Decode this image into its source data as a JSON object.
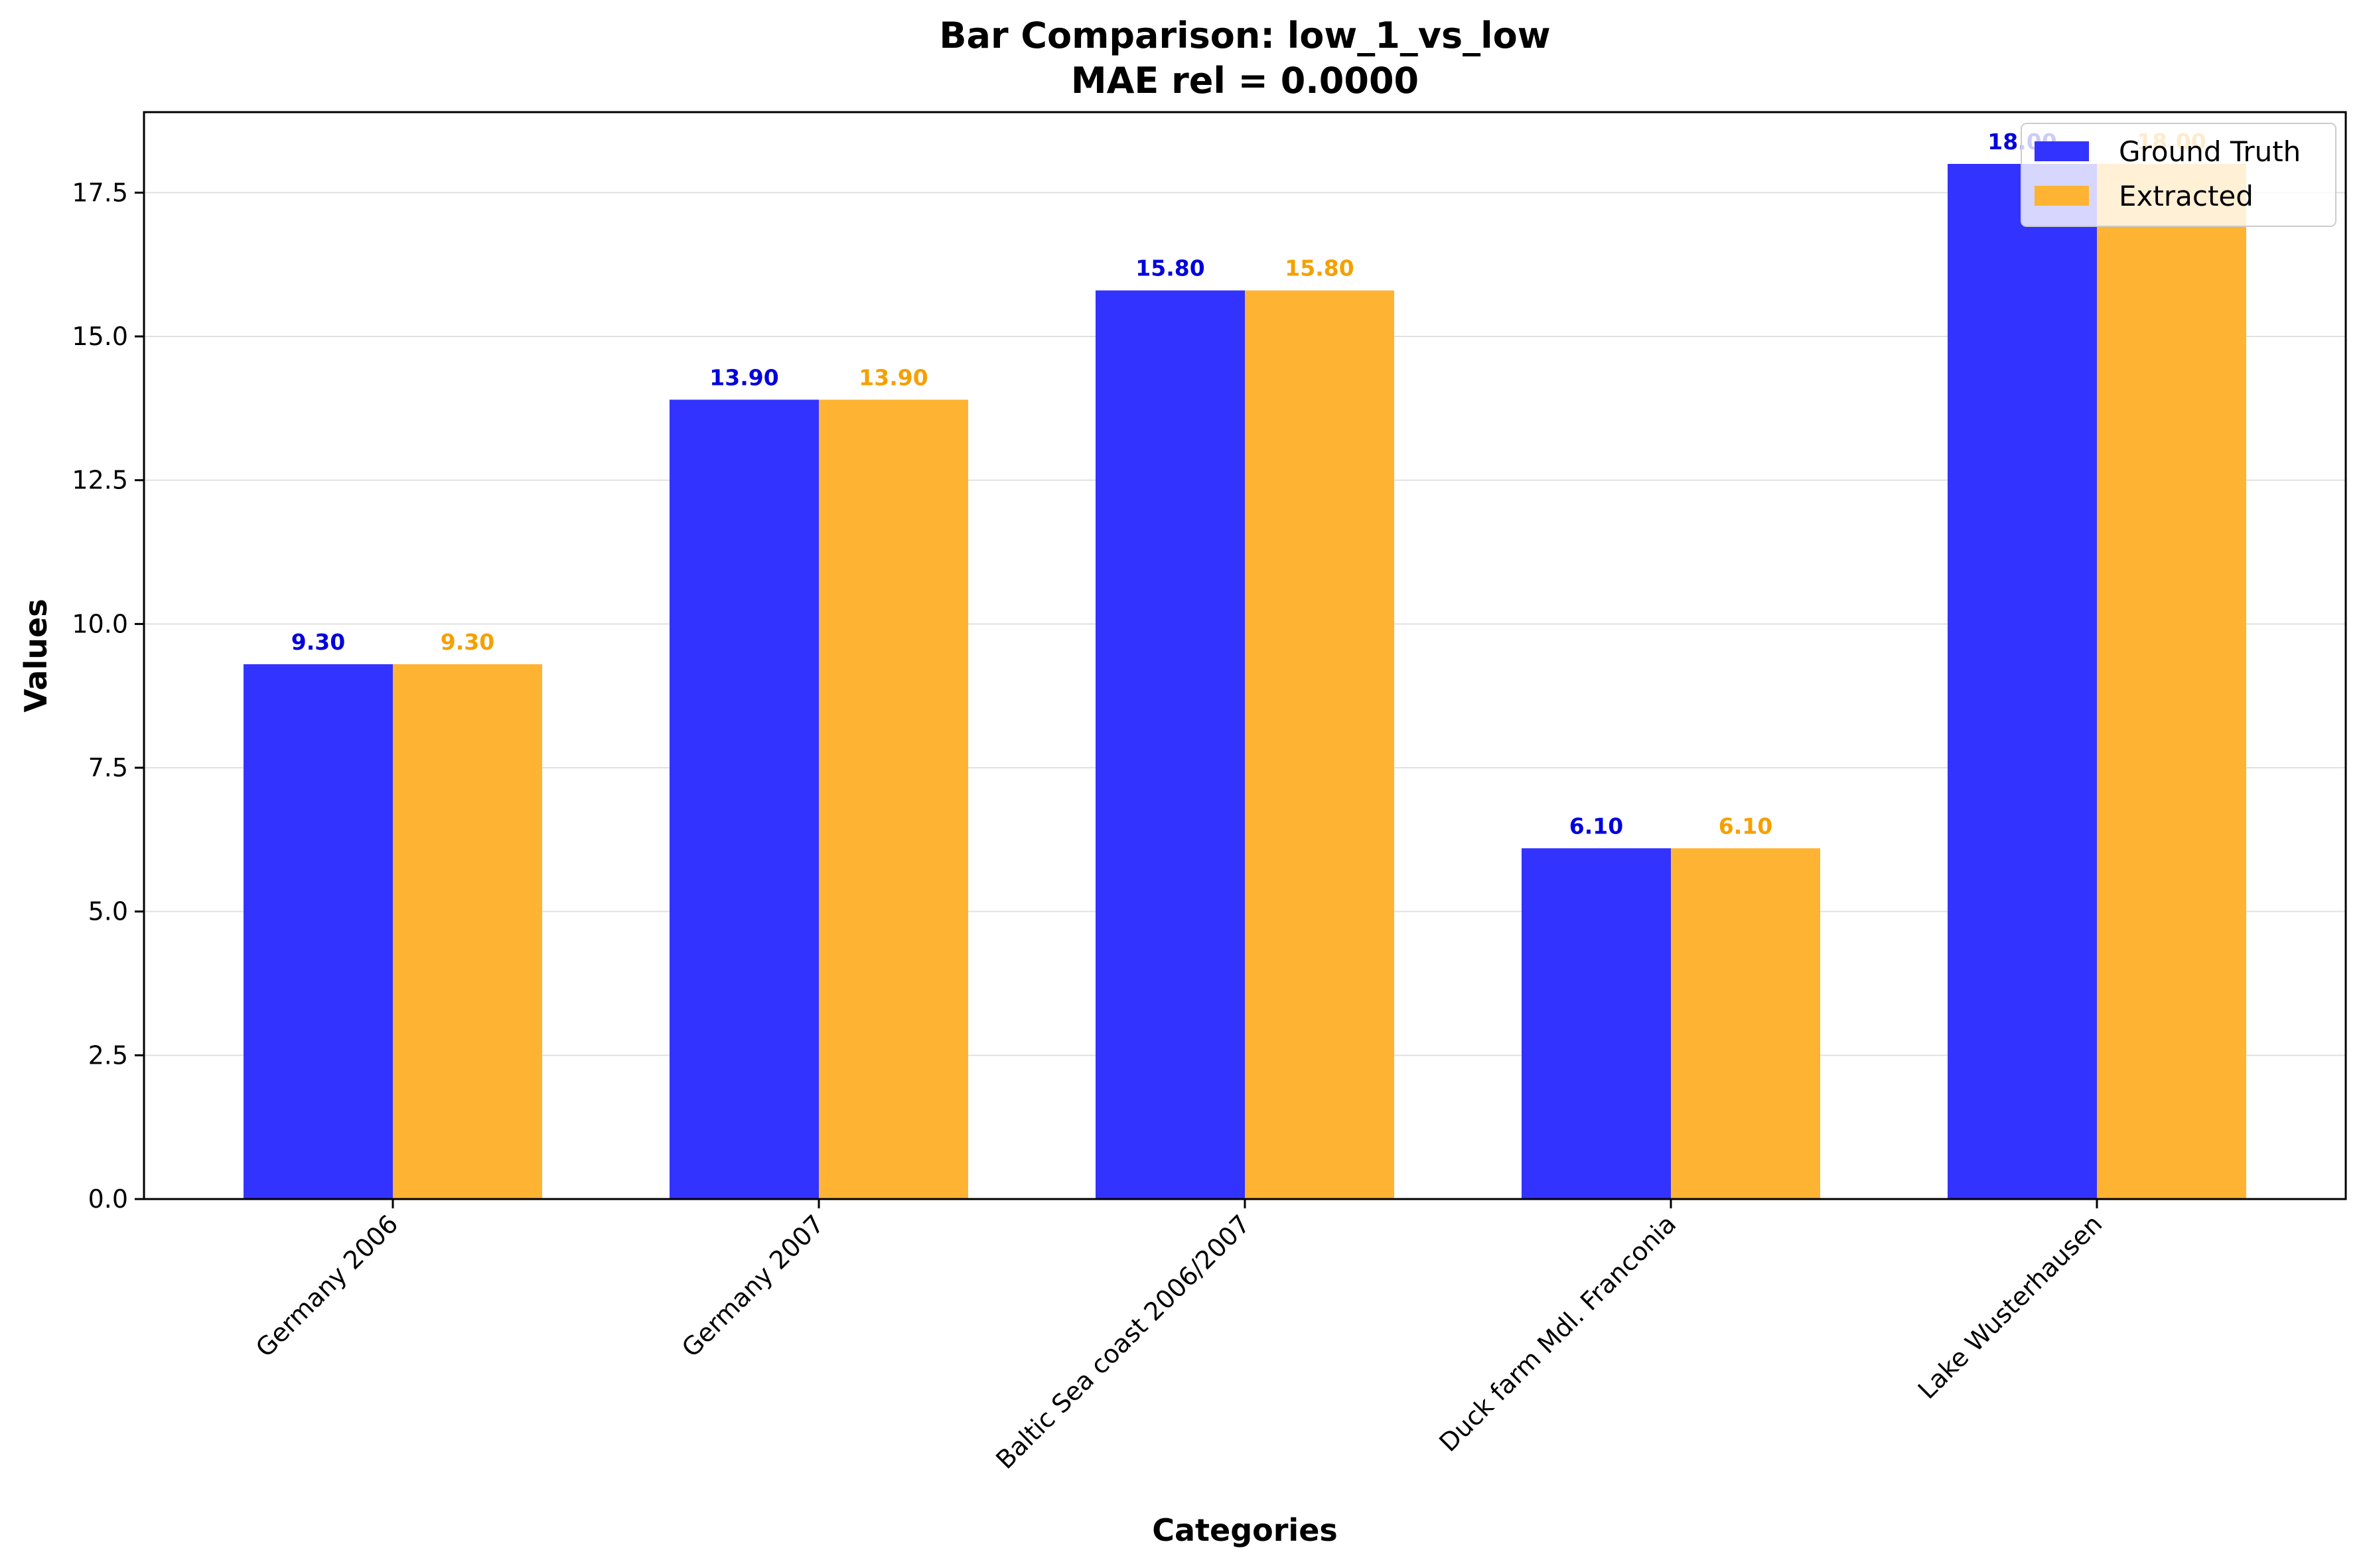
{
  "chart_data": {
    "type": "bar",
    "title": "Bar Comparison: low_1_vs_low",
    "subtitle": "MAE rel = 0.0000",
    "xlabel": "Categories",
    "ylabel": "Values",
    "categories": [
      "Germany 2006",
      "Germany 2007",
      "Baltic Sea coast 2006/2007",
      "Duck farm Mdl. Franconia",
      "Lake Wusterhausen"
    ],
    "series": [
      {
        "name": "Ground Truth",
        "values": [
          9.3,
          13.9,
          15.8,
          6.1,
          18.0
        ],
        "color": "#3333ff",
        "label_color": "#0000dd"
      },
      {
        "name": "Extracted",
        "values": [
          9.3,
          13.9,
          15.8,
          6.1,
          18.0
        ],
        "color": "#ffb333",
        "label_color": "#f5a000"
      }
    ],
    "data_labels": [
      [
        "9.30",
        "13.90",
        "15.80",
        "6.10",
        "18.00"
      ],
      [
        "9.30",
        "13.90",
        "15.80",
        "6.10",
        "18.00"
      ]
    ],
    "ylim": [
      0,
      18.9
    ],
    "yticks": [
      0.0,
      2.5,
      5.0,
      7.5,
      10.0,
      12.5,
      15.0,
      17.5
    ],
    "ytick_labels": [
      "0.0",
      "2.5",
      "5.0",
      "7.5",
      "10.0",
      "12.5",
      "15.0",
      "17.5"
    ],
    "grid": "horizontal",
    "legend_position": "top-right"
  }
}
